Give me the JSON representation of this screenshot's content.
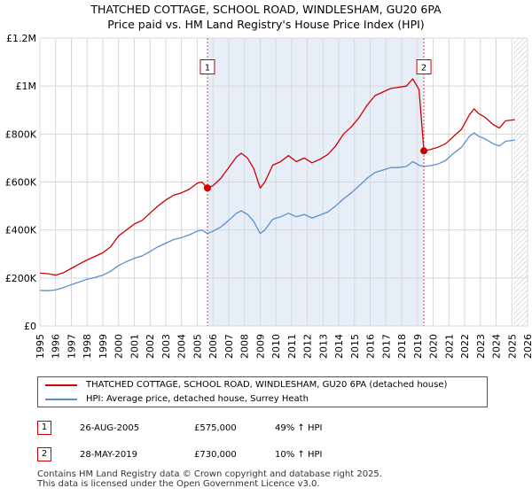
{
  "chart_data": {
    "type": "line",
    "title": "THATCHED COTTAGE, SCHOOL ROAD, WINDLESHAM, GU20 6PA",
    "subtitle": "Price paid vs. HM Land Registry's House Price Index (HPI)",
    "xlim": [
      1995,
      2026
    ],
    "ylim": [
      0,
      1200000
    ],
    "x_ticks": [
      1995,
      1996,
      1997,
      1998,
      1999,
      2000,
      2001,
      2002,
      2003,
      2004,
      2005,
      2006,
      2007,
      2008,
      2009,
      2010,
      2011,
      2012,
      2013,
      2014,
      2015,
      2016,
      2017,
      2018,
      2019,
      2020,
      2021,
      2022,
      2023,
      2024,
      2025,
      2026
    ],
    "y_ticks": [
      {
        "value": 0,
        "label": "£0"
      },
      {
        "value": 200000,
        "label": "£200K"
      },
      {
        "value": 400000,
        "label": "£400K"
      },
      {
        "value": 600000,
        "label": "£600K"
      },
      {
        "value": 800000,
        "label": "£800K"
      },
      {
        "value": 1000000,
        "label": "£1M"
      },
      {
        "value": 1200000,
        "label": "£1.2M"
      }
    ],
    "grid": true,
    "shaded_region": {
      "from": 2005.65,
      "to": 2019.41,
      "color": "#e8eef8"
    },
    "future_hatch_from": 2025.1,
    "series": [
      {
        "name": "THATCHED COTTAGE, SCHOOL ROAD, WINDLESHAM, GU20 6PA (detached house)",
        "color": "#cc0000",
        "points": [
          [
            1995.0,
            220000
          ],
          [
            1995.5,
            218000
          ],
          [
            1996.0,
            212000
          ],
          [
            1996.5,
            222000
          ],
          [
            1997.0,
            240000
          ],
          [
            1997.5,
            258000
          ],
          [
            1998.0,
            275000
          ],
          [
            1998.5,
            290000
          ],
          [
            1999.0,
            305000
          ],
          [
            1999.5,
            330000
          ],
          [
            2000.0,
            375000
          ],
          [
            2000.5,
            400000
          ],
          [
            2001.0,
            425000
          ],
          [
            2001.5,
            440000
          ],
          [
            2002.0,
            470000
          ],
          [
            2002.5,
            500000
          ],
          [
            2003.0,
            525000
          ],
          [
            2003.5,
            545000
          ],
          [
            2004.0,
            555000
          ],
          [
            2004.5,
            570000
          ],
          [
            2005.0,
            595000
          ],
          [
            2005.3,
            600000
          ],
          [
            2005.65,
            575000
          ],
          [
            2006.0,
            585000
          ],
          [
            2006.5,
            615000
          ],
          [
            2007.0,
            660000
          ],
          [
            2007.5,
            705000
          ],
          [
            2007.8,
            720000
          ],
          [
            2008.2,
            700000
          ],
          [
            2008.6,
            655000
          ],
          [
            2009.0,
            575000
          ],
          [
            2009.3,
            600000
          ],
          [
            2009.8,
            670000
          ],
          [
            2010.3,
            685000
          ],
          [
            2010.8,
            710000
          ],
          [
            2011.3,
            685000
          ],
          [
            2011.8,
            700000
          ],
          [
            2012.3,
            680000
          ],
          [
            2012.8,
            695000
          ],
          [
            2013.3,
            715000
          ],
          [
            2013.8,
            750000
          ],
          [
            2014.3,
            800000
          ],
          [
            2014.8,
            830000
          ],
          [
            2015.3,
            870000
          ],
          [
            2015.8,
            920000
          ],
          [
            2016.3,
            960000
          ],
          [
            2016.8,
            975000
          ],
          [
            2017.3,
            990000
          ],
          [
            2017.8,
            995000
          ],
          [
            2018.3,
            1000000
          ],
          [
            2018.7,
            1030000
          ],
          [
            2019.1,
            985000
          ],
          [
            2019.41,
            730000
          ],
          [
            2019.8,
            735000
          ],
          [
            2020.3,
            745000
          ],
          [
            2020.8,
            760000
          ],
          [
            2021.3,
            790000
          ],
          [
            2021.8,
            820000
          ],
          [
            2022.3,
            880000
          ],
          [
            2022.6,
            905000
          ],
          [
            2022.9,
            885000
          ],
          [
            2023.3,
            870000
          ],
          [
            2023.8,
            840000
          ],
          [
            2024.2,
            825000
          ],
          [
            2024.6,
            855000
          ],
          [
            2025.2,
            860000
          ]
        ]
      },
      {
        "name": "HPI: Average price, detached house, Surrey Heath",
        "color": "#5b8fcc",
        "points": [
          [
            1995.0,
            148000
          ],
          [
            1995.5,
            147000
          ],
          [
            1996.0,
            150000
          ],
          [
            1996.5,
            160000
          ],
          [
            1997.0,
            172000
          ],
          [
            1997.5,
            183000
          ],
          [
            1998.0,
            195000
          ],
          [
            1998.5,
            202000
          ],
          [
            1999.0,
            212000
          ],
          [
            1999.5,
            228000
          ],
          [
            2000.0,
            252000
          ],
          [
            2000.5,
            268000
          ],
          [
            2001.0,
            282000
          ],
          [
            2001.5,
            292000
          ],
          [
            2002.0,
            310000
          ],
          [
            2002.5,
            330000
          ],
          [
            2003.0,
            345000
          ],
          [
            2003.5,
            360000
          ],
          [
            2004.0,
            368000
          ],
          [
            2004.5,
            380000
          ],
          [
            2005.0,
            395000
          ],
          [
            2005.3,
            400000
          ],
          [
            2005.65,
            385000
          ],
          [
            2006.0,
            395000
          ],
          [
            2006.5,
            412000
          ],
          [
            2007.0,
            440000
          ],
          [
            2007.5,
            470000
          ],
          [
            2007.8,
            480000
          ],
          [
            2008.2,
            465000
          ],
          [
            2008.6,
            435000
          ],
          [
            2009.0,
            385000
          ],
          [
            2009.3,
            400000
          ],
          [
            2009.8,
            445000
          ],
          [
            2010.3,
            455000
          ],
          [
            2010.8,
            470000
          ],
          [
            2011.3,
            455000
          ],
          [
            2011.8,
            465000
          ],
          [
            2012.3,
            450000
          ],
          [
            2012.8,
            462000
          ],
          [
            2013.3,
            475000
          ],
          [
            2013.8,
            500000
          ],
          [
            2014.3,
            530000
          ],
          [
            2014.8,
            555000
          ],
          [
            2015.3,
            585000
          ],
          [
            2015.8,
            615000
          ],
          [
            2016.3,
            640000
          ],
          [
            2016.8,
            650000
          ],
          [
            2017.3,
            660000
          ],
          [
            2017.8,
            660000
          ],
          [
            2018.3,
            665000
          ],
          [
            2018.7,
            685000
          ],
          [
            2019.1,
            670000
          ],
          [
            2019.41,
            665000
          ],
          [
            2019.8,
            668000
          ],
          [
            2020.3,
            675000
          ],
          [
            2020.8,
            690000
          ],
          [
            2021.3,
            720000
          ],
          [
            2021.8,
            745000
          ],
          [
            2022.3,
            790000
          ],
          [
            2022.6,
            805000
          ],
          [
            2022.9,
            790000
          ],
          [
            2023.3,
            780000
          ],
          [
            2023.8,
            760000
          ],
          [
            2024.2,
            750000
          ],
          [
            2024.6,
            770000
          ],
          [
            2025.2,
            775000
          ]
        ]
      }
    ],
    "markers": [
      {
        "label": "1",
        "x": 2005.65,
        "y": 575000,
        "box_y": 1080000
      },
      {
        "label": "2",
        "x": 2019.41,
        "y": 730000,
        "box_y": 1080000
      }
    ]
  },
  "legend": {
    "items": [
      {
        "label": "THATCHED COTTAGE, SCHOOL ROAD, WINDLESHAM, GU20 6PA (detached house)",
        "color": "#cc0000"
      },
      {
        "label": "HPI: Average price, detached house, Surrey Heath",
        "color": "#5b8fcc"
      }
    ]
  },
  "annotations": [
    {
      "num": "1",
      "date": "26-AUG-2005",
      "price": "£575,000",
      "hpi": "49% ↑ HPI"
    },
    {
      "num": "2",
      "date": "28-MAY-2019",
      "price": "£730,000",
      "hpi": "10% ↑ HPI"
    }
  ],
  "footer": {
    "line1": "Contains HM Land Registry data © Crown copyright and database right 2025.",
    "line2": "This data is licensed under the Open Government Licence v3.0."
  }
}
